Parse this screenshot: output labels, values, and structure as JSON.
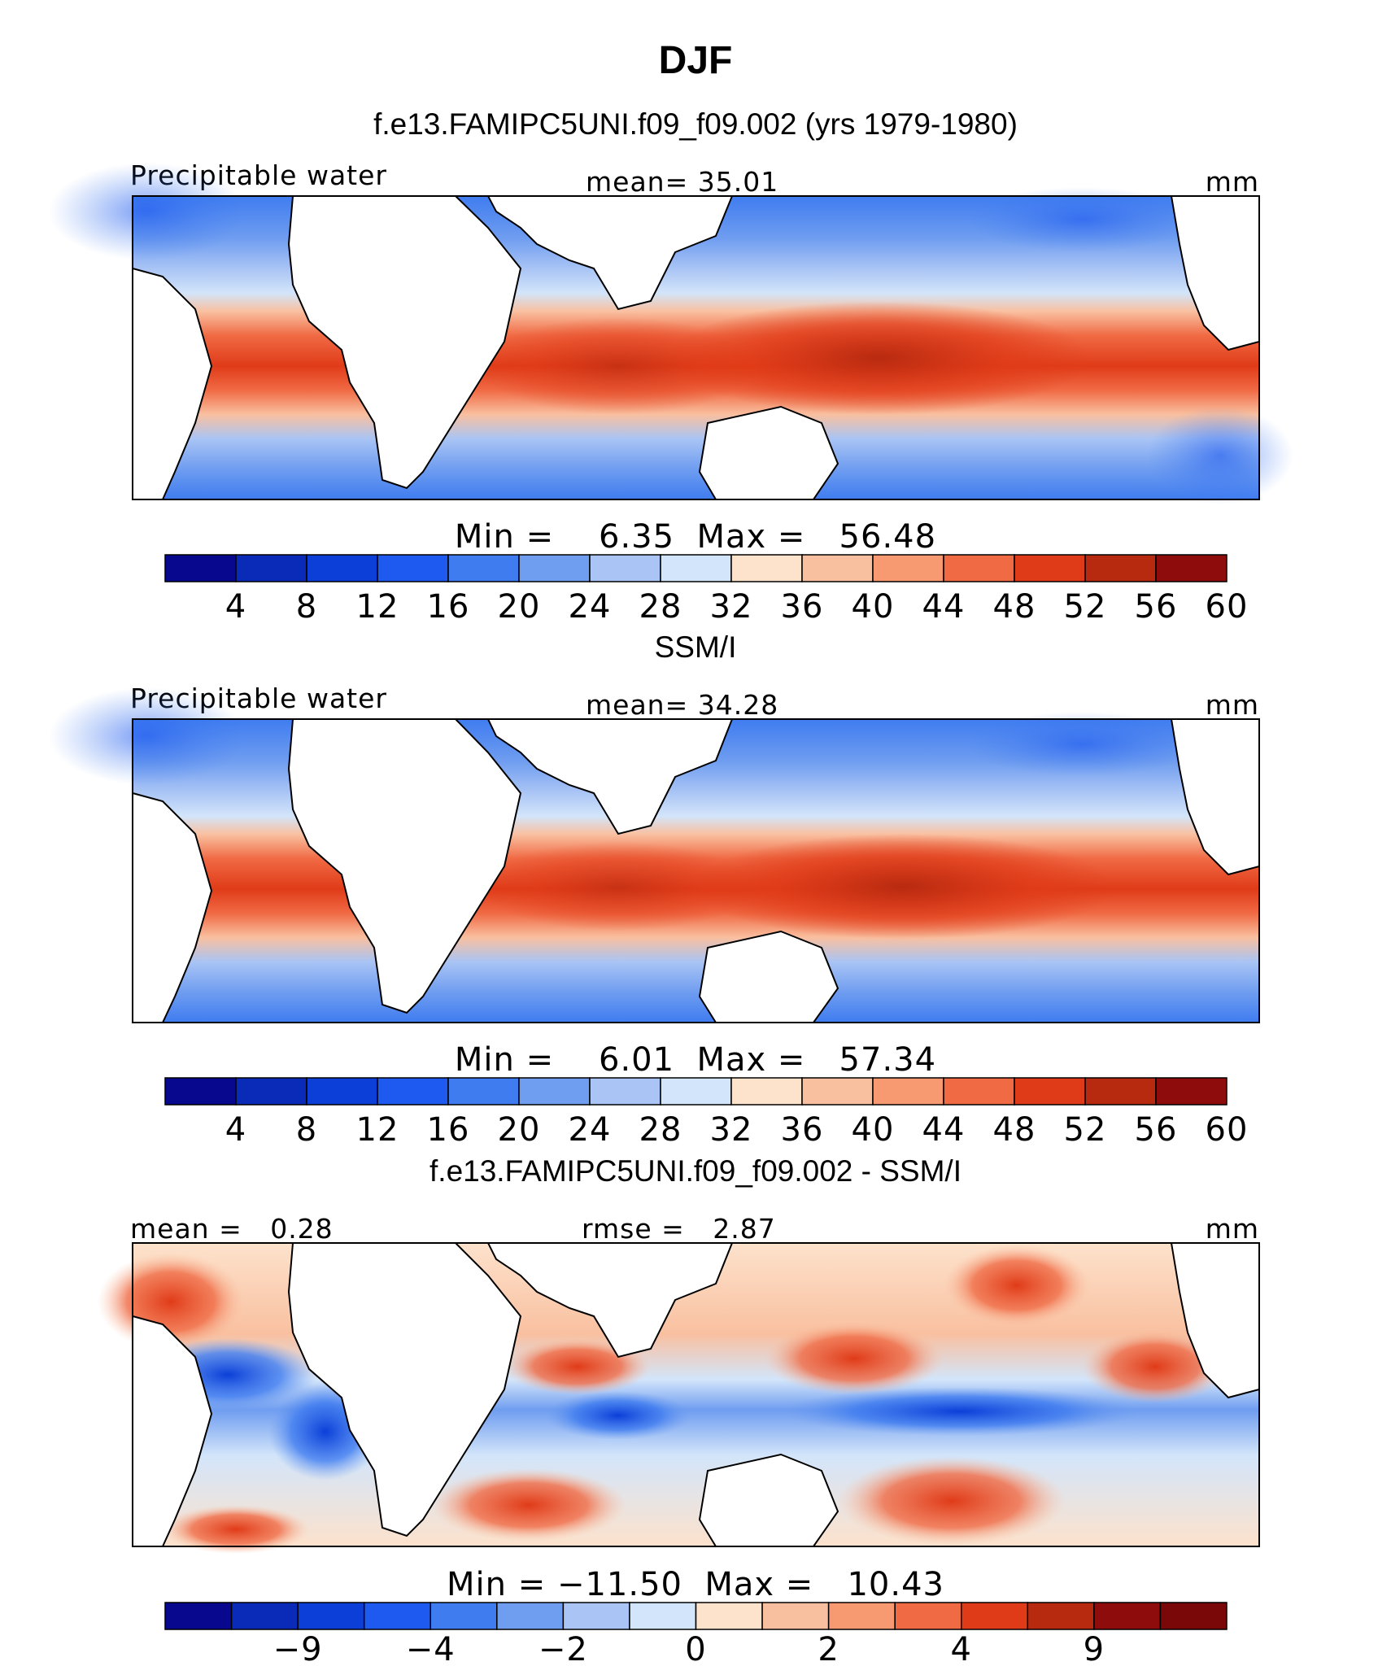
{
  "figure": {
    "title": "DJF"
  },
  "chart_data": [
    {
      "type": "heatmap",
      "title": "f.e13.FAMIPC5UNI.f09_f09.002 (yrs 1979-1980)",
      "left_label": "Precipitable water",
      "center_label": "mean=  35.01",
      "units": "mm",
      "mean": 35.01,
      "stats_text": "Min =    6.35  Max =   56.48",
      "min": 6.35,
      "max": 56.48,
      "colorbar": {
        "levels": [
          "4",
          "8",
          "12",
          "16",
          "20",
          "24",
          "28",
          "32",
          "36",
          "40",
          "44",
          "48",
          "52",
          "56",
          "60"
        ],
        "colors": [
          "#08088f",
          "#0a2ab8",
          "#0b3fd8",
          "#1f5af0",
          "#3f7cf0",
          "#6f9df0",
          "#a9c4f5",
          "#d3e5fa",
          "#fde2cc",
          "#f9c0a0",
          "#f79a72",
          "#f06a44",
          "#e03b18",
          "#b82a10",
          "#8e0c0c"
        ]
      }
    },
    {
      "type": "heatmap",
      "title": "SSM/I",
      "left_label": "Precipitable water",
      "center_label": "mean=  34.28",
      "units": "mm",
      "mean": 34.28,
      "stats_text": "Min =    6.01  Max =   57.34",
      "min": 6.01,
      "max": 57.34,
      "colorbar": {
        "levels": [
          "4",
          "8",
          "12",
          "16",
          "20",
          "24",
          "28",
          "32",
          "36",
          "40",
          "44",
          "48",
          "52",
          "56",
          "60"
        ],
        "colors": [
          "#08088f",
          "#0a2ab8",
          "#0b3fd8",
          "#1f5af0",
          "#3f7cf0",
          "#6f9df0",
          "#a9c4f5",
          "#d3e5fa",
          "#fde2cc",
          "#f9c0a0",
          "#f79a72",
          "#f06a44",
          "#e03b18",
          "#b82a10",
          "#8e0c0c"
        ]
      }
    },
    {
      "type": "heatmap",
      "title": "f.e13.FAMIPC5UNI.f09_f09.002 - SSM/I",
      "left_label": "mean =   0.28",
      "center_label": "rmse =   2.87",
      "units": "mm",
      "mean": 0.28,
      "rmse": 2.87,
      "stats_text": "Min = −11.50  Max =   10.43",
      "min": -11.5,
      "max": 10.43,
      "colorbar": {
        "levels": [
          "−9",
          "−4",
          "−2",
          "0",
          "2",
          "4",
          "9"
        ],
        "colors": [
          "#08088f",
          "#0a2ab8",
          "#0b3fd8",
          "#1f5af0",
          "#3f7cf0",
          "#6f9df0",
          "#a9c4f5",
          "#d3e5fa",
          "#fde2cc",
          "#f9c0a0",
          "#f79a72",
          "#f06a44",
          "#e03b18",
          "#b82a10",
          "#8e0c0c",
          "#7a0808"
        ]
      }
    }
  ]
}
